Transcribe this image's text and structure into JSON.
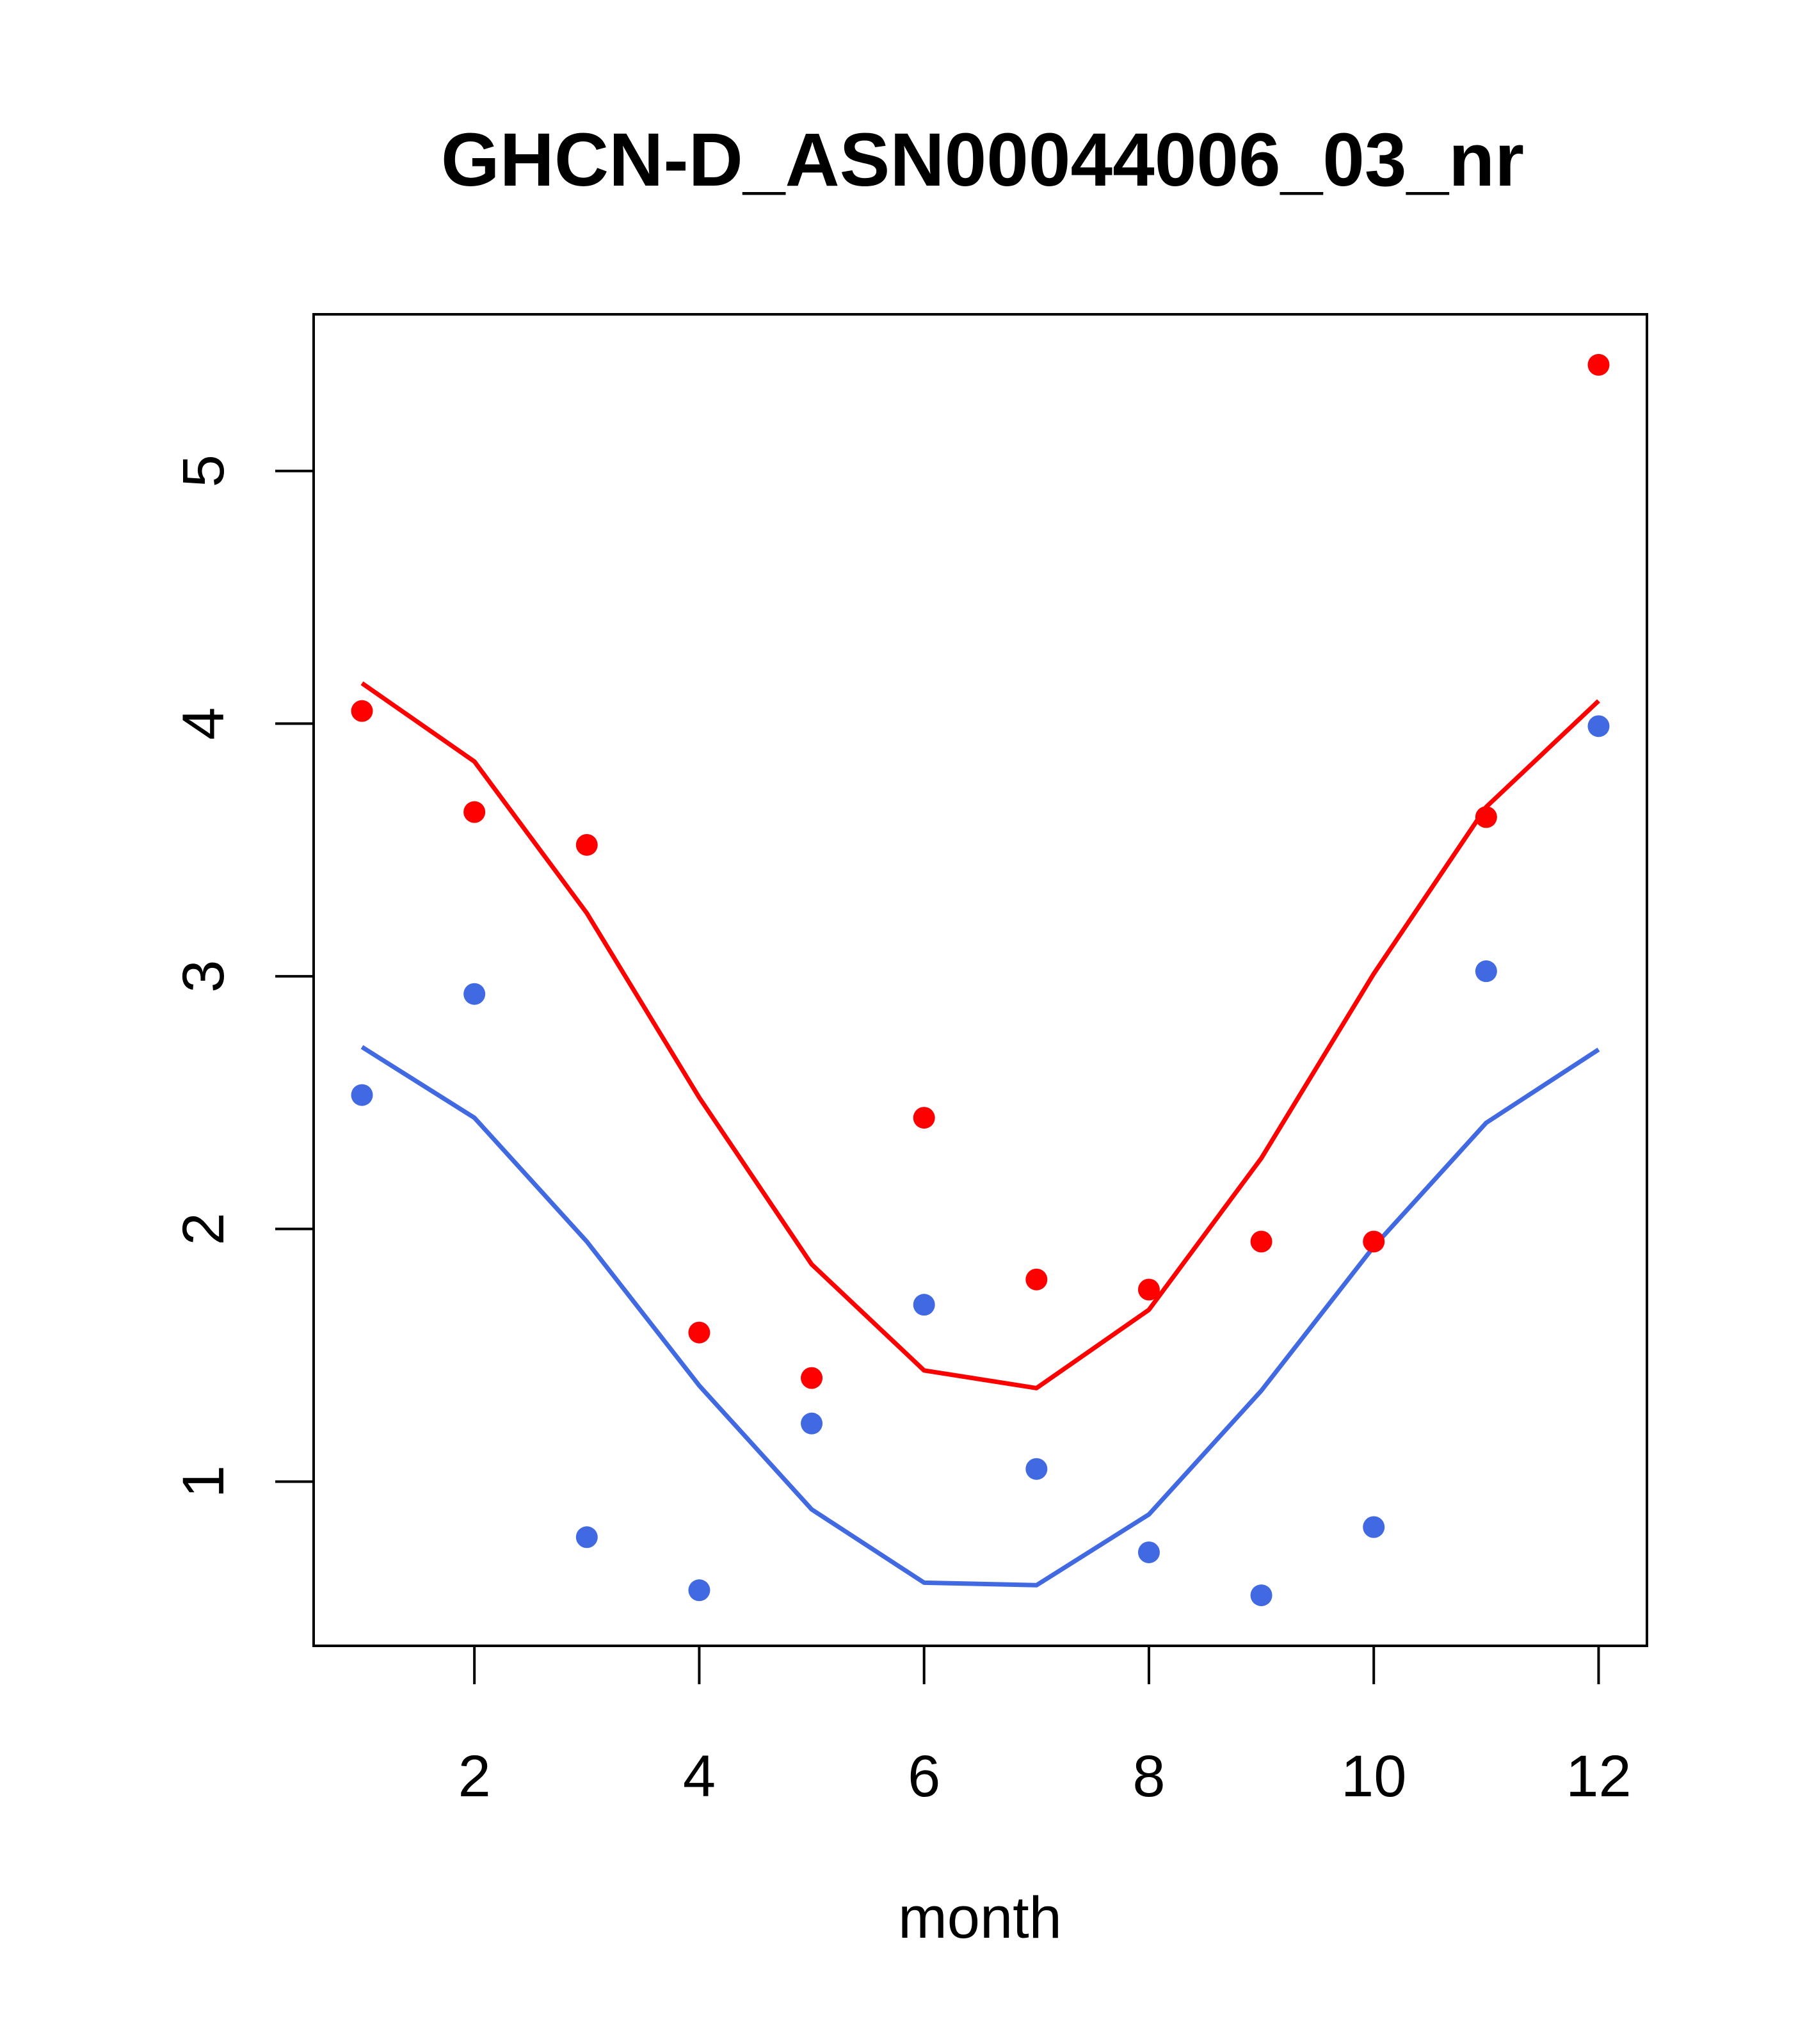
{
  "chart_data": {
    "type": "scatter",
    "title": "GHCN-D_ASN00044006_03_nr",
    "xlabel": "month",
    "ylabel": "",
    "xlim": [
      0.57,
      12.43
    ],
    "ylim": [
      0.35,
      5.62
    ],
    "x_ticks": [
      2,
      4,
      6,
      8,
      10,
      12
    ],
    "y_ticks": [
      1,
      2,
      3,
      4,
      5
    ],
    "grid": false,
    "legend": "none",
    "x": [
      1,
      2,
      3,
      4,
      5,
      6,
      7,
      8,
      9,
      10,
      11,
      12
    ],
    "series": [
      {
        "style": "points",
        "color": "#ff0000",
        "values": [
          4.05,
          3.65,
          3.52,
          1.59,
          1.41,
          2.44,
          1.8,
          1.76,
          1.95,
          1.95,
          3.63,
          5.42
        ]
      },
      {
        "style": "points",
        "color": "#4169e1",
        "values": [
          2.53,
          2.93,
          0.78,
          0.57,
          1.23,
          1.7,
          1.05,
          0.72,
          0.55,
          0.82,
          3.02,
          3.99
        ]
      },
      {
        "style": "line",
        "color": "#ff0000",
        "values": [
          4.16,
          3.85,
          3.25,
          2.52,
          1.86,
          1.44,
          1.37,
          1.68,
          2.28,
          3.01,
          3.67,
          4.09
        ]
      },
      {
        "style": "line",
        "color": "#4169e1",
        "values": [
          2.72,
          2.44,
          1.95,
          1.38,
          0.89,
          0.6,
          0.59,
          0.87,
          1.36,
          1.93,
          2.42,
          2.71
        ]
      }
    ]
  }
}
